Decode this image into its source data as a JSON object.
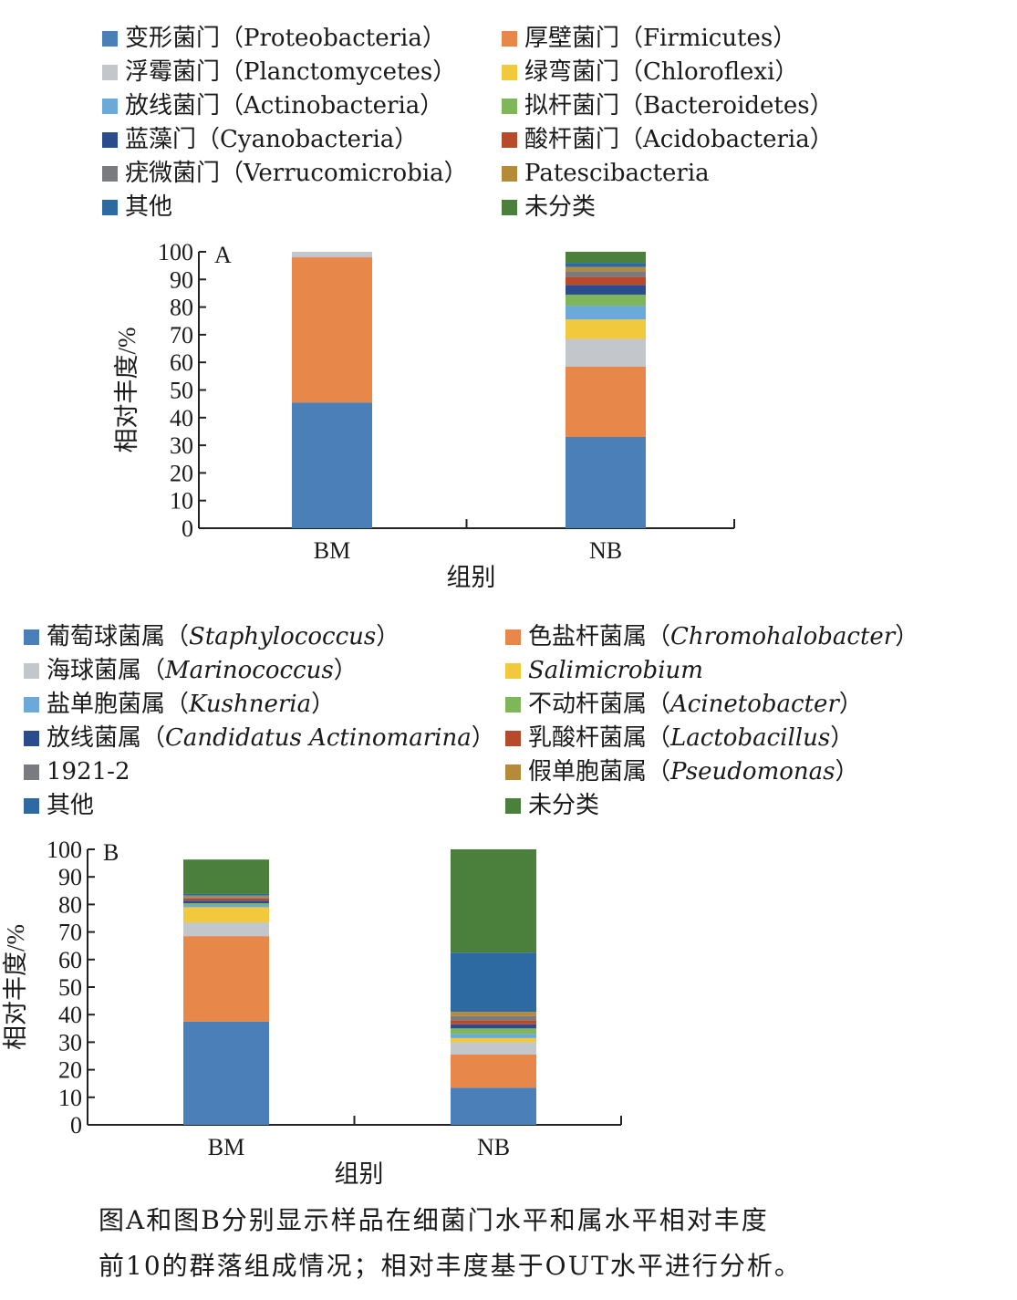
{
  "chart_data": [
    {
      "type": "bar",
      "panel_label": "A",
      "categories": [
        "BM",
        "NB"
      ],
      "xlabel": "组别",
      "ylabel": "相对丰度/%",
      "ylim": [
        0,
        100
      ],
      "yticks": [
        0,
        10,
        20,
        30,
        40,
        50,
        60,
        70,
        80,
        90,
        100
      ],
      "stacked": true,
      "series": [
        {
          "name": "变形菌门（Proteobacteria）",
          "color": "#4a7fb8",
          "values": [
            45.5,
            33
          ]
        },
        {
          "name": "厚壁菌门（Firmicutes）",
          "color": "#e8874a",
          "values": [
            52.5,
            25.5
          ]
        },
        {
          "name": "浮霉菌门（Planctomycetes）",
          "color": "#c3c6ca",
          "values": [
            2,
            10
          ]
        },
        {
          "name": "绿弯菌门（Chloroflexi）",
          "color": "#f2c83d",
          "values": [
            0,
            7
          ]
        },
        {
          "name": "放线菌门（Actinobacteria）",
          "color": "#6aa9d8",
          "values": [
            0,
            5
          ]
        },
        {
          "name": "拟杆菌门（Bacteroidetes）",
          "color": "#7fb65a",
          "values": [
            0,
            4
          ]
        },
        {
          "name": "蓝藻门（Cyanobacteria）",
          "color": "#2b4c8c",
          "values": [
            0,
            3.5
          ]
        },
        {
          "name": "酸杆菌门（Acidobacteria）",
          "color": "#b84a2c",
          "values": [
            0,
            3
          ]
        },
        {
          "name": "疣微菌门（Verrucomicrobia）",
          "color": "#7a7b7e",
          "values": [
            0,
            2
          ]
        },
        {
          "name": "Patescibacteria",
          "color": "#b58a38",
          "values": [
            0,
            1.5
          ]
        },
        {
          "name": "其他",
          "color": "#2d6aa1",
          "values": [
            0,
            1.5
          ]
        },
        {
          "name": "未分类",
          "color": "#4a7f3c",
          "values": [
            0,
            4
          ]
        }
      ]
    },
    {
      "type": "bar",
      "panel_label": "B",
      "categories": [
        "BM",
        "NB"
      ],
      "xlabel": "组别",
      "ylabel": "相对丰度/%",
      "ylim": [
        0,
        100
      ],
      "yticks": [
        0,
        10,
        20,
        30,
        40,
        50,
        60,
        70,
        80,
        90,
        100
      ],
      "stacked": true,
      "series": [
        {
          "name_cn": "葡萄球菌属（",
          "name_latin": "Staphylococcus",
          "name_end": "）",
          "color": "#4a7fb8",
          "values": [
            37.5,
            13.5
          ]
        },
        {
          "name_cn": "色盐杆菌属（",
          "name_latin": "Chromohalobacter",
          "name_end": "）",
          "color": "#e8874a",
          "values": [
            31,
            12
          ]
        },
        {
          "name_cn": "海球菌属（",
          "name_latin": "Marinococcus",
          "name_end": "）",
          "color": "#c3c6ca",
          "values": [
            5,
            4.5
          ]
        },
        {
          "name_cn": "",
          "name_latin": "Salimicrobium",
          "name_end": "",
          "color": "#f2c83d",
          "values": [
            5.5,
            1.5
          ]
        },
        {
          "name_cn": "盐单胞菌属（",
          "name_latin": "Kushneria",
          "name_end": "）",
          "color": "#6aa9d8",
          "values": [
            0.8,
            1.5
          ]
        },
        {
          "name_cn": "不动杆菌属（",
          "name_latin": "Acinetobacter",
          "name_end": "）",
          "color": "#7fb65a",
          "values": [
            0.6,
            2
          ]
        },
        {
          "name_cn": "放线菌属（",
          "name_latin": "Candidatus Actinomarina",
          "name_end": "）",
          "color": "#2b4c8c",
          "values": [
            1,
            1.5
          ]
        },
        {
          "name_cn": "乳酸杆菌属（",
          "name_latin": "Lactobacillus",
          "name_end": "）",
          "color": "#b84a2c",
          "values": [
            0.8,
            1.5
          ]
        },
        {
          "name_cn": "1921-2",
          "name_latin": "",
          "name_end": "",
          "color": "#7a7b7e",
          "values": [
            0.5,
            1.5
          ]
        },
        {
          "name_cn": "假单胞菌属（",
          "name_latin": "Pseudomonas",
          "name_end": "）",
          "color": "#b58a38",
          "values": [
            0.5,
            1.5
          ]
        },
        {
          "name_cn": "其他",
          "name_latin": "",
          "name_end": "",
          "color": "#2d6aa1",
          "values": [
            0.6,
            21.5
          ]
        },
        {
          "name_cn": "未分类",
          "name_latin": "",
          "name_end": "",
          "color": "#4a7f3c",
          "values": [
            12.5,
            37.5
          ]
        }
      ]
    }
  ],
  "caption": {
    "line1": "图A和图B分别显示样品在细菌门水平和属水平相对丰度",
    "line2": "前10的群落组成情况；相对丰度基于OUT水平进行分析。"
  }
}
